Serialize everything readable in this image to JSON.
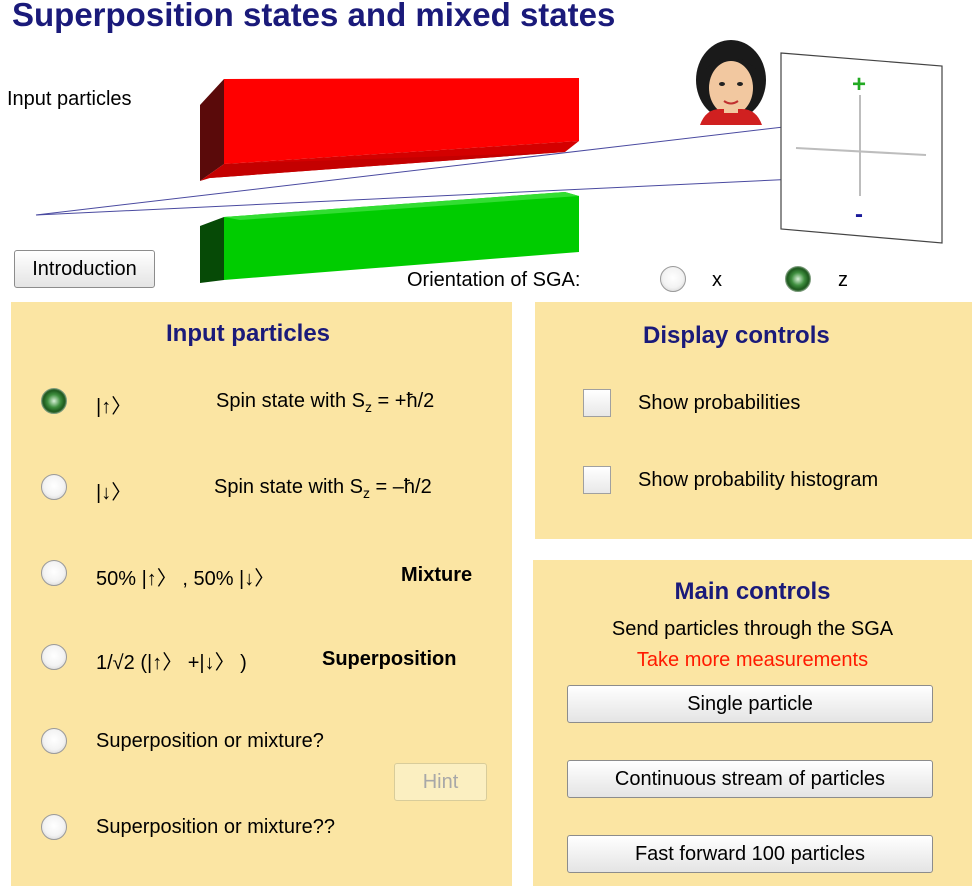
{
  "header": {
    "title": "Superposition states and mixed states",
    "input_particles_label": "Input particles",
    "introduction_button": "Introduction"
  },
  "screen": {
    "plus_symbol": "+",
    "minus_symbol": "-",
    "plus_color": "#22aa22",
    "minus_color": "#1a1a9a"
  },
  "magnets": {
    "top_color": "#ff0000",
    "bottom_color": "#00cc00"
  },
  "orientation": {
    "label": "Orientation of SGA:",
    "options": [
      {
        "label": "x",
        "selected": false
      },
      {
        "label": "z",
        "selected": true
      }
    ]
  },
  "input_panel": {
    "title": "Input particles",
    "items": [
      {
        "ket": "|↑〉",
        "desc_prefix": "Spin state with S",
        "desc_sub": "z",
        "desc_suffix": " = +ħ/2",
        "selected": true
      },
      {
        "ket": "|↓〉",
        "desc_prefix": "Spin state with S",
        "desc_sub": "z",
        "desc_suffix": " = –ħ/2",
        "selected": false
      },
      {
        "text": "50% |↑〉 , 50% |↓〉",
        "tag": "Mixture",
        "selected": false
      },
      {
        "text": "1/√2 (|↑〉 +|↓〉 )",
        "tag": "Superposition",
        "selected": false
      },
      {
        "text": "Superposition or mixture?",
        "selected": false
      },
      {
        "text": "Superposition or mixture??",
        "selected": false
      }
    ],
    "hint_button": "Hint"
  },
  "display_panel": {
    "title": "Display controls",
    "options": [
      {
        "label": "Show probabilities",
        "checked": false
      },
      {
        "label": "Show probability histogram",
        "checked": false
      }
    ]
  },
  "main_panel": {
    "title": "Main controls",
    "subtitle": "Send particles through the SGA",
    "status": "Take more measurements",
    "buttons": {
      "single": "Single particle",
      "stream": "Continuous stream of particles",
      "fast_forward": "Fast forward 100 particles"
    }
  },
  "colors": {
    "panel_bg": "#fbe5a3",
    "title_color": "#1a1a7a",
    "status_color": "#ff1a00"
  }
}
